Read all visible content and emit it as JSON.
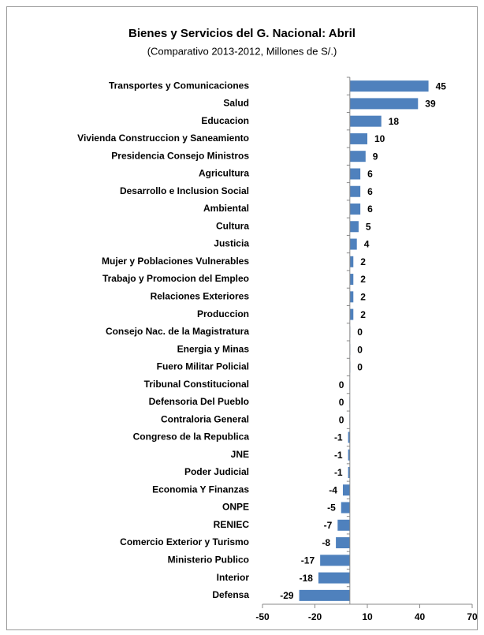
{
  "chart_data": {
    "type": "barh",
    "title": "Bienes y Servicios del G. Nacional:  Abril",
    "subtitle": "(Comparativo 2013-2012, Millones de S/.)",
    "categories": [
      "Transportes y Comunicaciones",
      "Salud",
      "Educacion",
      "Vivienda Construccion y Saneamiento",
      "Presidencia Consejo Ministros",
      "Agricultura",
      "Desarrollo e Inclusion Social",
      "Ambiental",
      "Cultura",
      "Justicia",
      "Mujer y Poblaciones Vulnerables",
      "Trabajo y Promocion del Empleo",
      "Relaciones Exteriores",
      "Produccion",
      "Consejo Nac. de la Magistratura",
      "Energia y Minas",
      "Fuero Militar Policial",
      "Tribunal Constitucional",
      "Defensoria Del Pueblo",
      "Contraloria General",
      "Congreso de la Republica",
      "JNE",
      "Poder Judicial",
      "Economia Y Finanzas",
      "ONPE",
      "RENIEC",
      "Comercio Exterior y Turismo",
      "Ministerio Publico",
      "Interior",
      "Defensa"
    ],
    "values": [
      45,
      39,
      18,
      10,
      9,
      6,
      6,
      6,
      5,
      4,
      2,
      2,
      2,
      2,
      0.2,
      0.2,
      0.2,
      -0.2,
      -0.2,
      -0.2,
      -1,
      -1,
      -1,
      -4,
      -5,
      -7,
      -8,
      -17,
      -18,
      -29
    ],
    "value_labels": [
      "45",
      "39",
      "18",
      "10",
      "9",
      "6",
      "6",
      "6",
      "5",
      "4",
      "2",
      "2",
      "2",
      "2",
      "0",
      "0",
      "0",
      "0",
      "0",
      "0",
      "-1",
      "-1",
      "-1",
      "-4",
      "-5",
      "-7",
      "-8",
      "-17",
      "-18",
      "-29"
    ],
    "color": "#4f81bd",
    "xlim": [
      -50,
      70
    ],
    "xticks": [
      -50,
      -20,
      10,
      40,
      70
    ]
  }
}
